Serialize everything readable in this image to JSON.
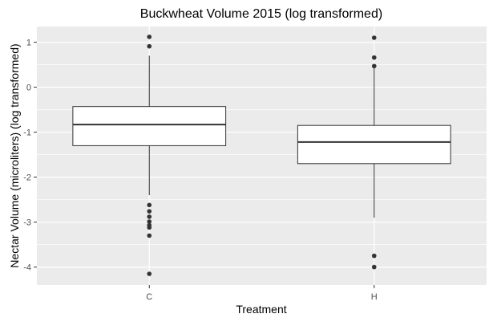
{
  "chart_data": {
    "type": "boxplot",
    "title": "Buckwheat Volume 2015 (log transformed)",
    "xlabel": "Treatment",
    "ylabel": "Nectar Volume (microliters) (log transformed)",
    "categories": [
      "C",
      "H"
    ],
    "ylim": [
      -4.4,
      1.35
    ],
    "yticks": [
      1,
      0,
      -1,
      -2,
      -3,
      -4
    ],
    "ytick_labels": [
      "1",
      "0",
      "-1",
      "-2",
      "-3",
      "-4"
    ],
    "grid": true,
    "boxes": [
      {
        "category": "C",
        "whisker_low": -2.4,
        "q1": -1.3,
        "median": -0.83,
        "q3": -0.43,
        "whisker_high": 0.7,
        "outliers": [
          1.12,
          0.91,
          -2.62,
          -2.76,
          -2.88,
          -2.99,
          -3.07,
          -3.12,
          -3.3,
          -4.15
        ]
      },
      {
        "category": "H",
        "whisker_low": -2.9,
        "q1": -1.7,
        "median": -1.22,
        "q3": -0.85,
        "whisker_high": 0.45,
        "outliers": [
          1.1,
          0.66,
          0.47,
          -3.75,
          -4.0
        ]
      }
    ],
    "colors": {
      "panel_bg": "#ebebeb",
      "grid": "#ffffff",
      "box_fill": "#ffffff",
      "box_stroke": "#333333",
      "outlier": "#333333"
    }
  }
}
